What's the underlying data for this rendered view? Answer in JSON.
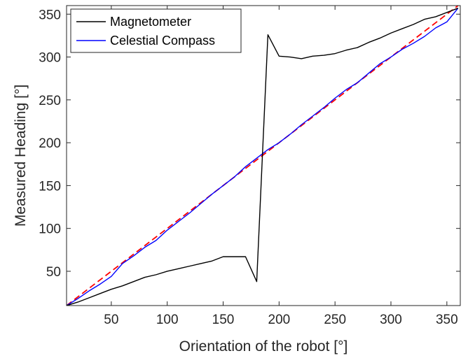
{
  "chart_data": {
    "type": "line",
    "title": "",
    "xlabel": "Orientation of the robot [°]",
    "ylabel": "Measured Heading [°]",
    "xlim": [
      10,
      362
    ],
    "ylim": [
      10,
      360
    ],
    "xticks": [
      50,
      100,
      150,
      200,
      250,
      300,
      350
    ],
    "yticks": [
      50,
      100,
      150,
      200,
      250,
      300,
      350
    ],
    "grid": false,
    "legend_position": "top-left",
    "series": [
      {
        "name": "Magnetometer",
        "color": "#000000",
        "x": [
          10,
          20,
          30,
          40,
          50,
          60,
          70,
          80,
          90,
          100,
          110,
          120,
          130,
          140,
          150,
          160,
          170,
          180,
          190,
          200,
          210,
          220,
          230,
          240,
          250,
          260,
          270,
          280,
          290,
          300,
          310,
          320,
          330,
          340,
          350,
          360
        ],
        "y": [
          10,
          14,
          19,
          24,
          29,
          33,
          38,
          43,
          46,
          50,
          53,
          56,
          59,
          62,
          67,
          67,
          67,
          38,
          326,
          301,
          300,
          298,
          301,
          302,
          304,
          308,
          311,
          317,
          322,
          328,
          333,
          338,
          344,
          347,
          352,
          357
        ]
      },
      {
        "name": "Celestial Compass",
        "color": "#0000ff",
        "x": [
          10,
          20,
          30,
          40,
          50,
          60,
          70,
          80,
          90,
          100,
          110,
          120,
          130,
          140,
          150,
          160,
          170,
          180,
          190,
          200,
          210,
          220,
          230,
          240,
          250,
          260,
          270,
          280,
          290,
          300,
          310,
          320,
          330,
          340,
          350,
          360
        ],
        "y": [
          10,
          18,
          27,
          35,
          44,
          59,
          68,
          78,
          86,
          98,
          108,
          118,
          129,
          140,
          150,
          160,
          172,
          182,
          192,
          200,
          210,
          221,
          231,
          241,
          252,
          262,
          270,
          281,
          292,
          300,
          309,
          316,
          324,
          334,
          341,
          357
        ]
      },
      {
        "color": "#ff0000",
        "style": "dashed",
        "x": [
          10,
          360
        ],
        "y": [
          10,
          360
        ]
      }
    ]
  }
}
